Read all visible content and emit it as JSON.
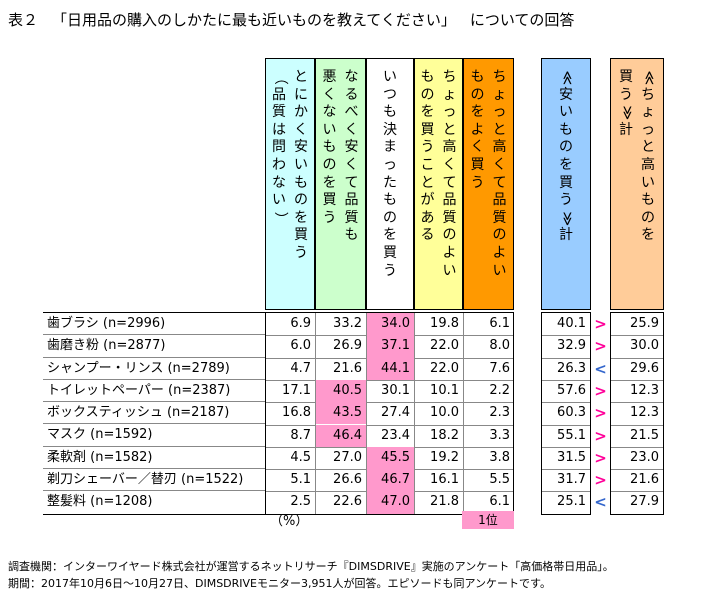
{
  "title": {
    "label": "表２",
    "text": "「日用品の購入のしかたに最も近いものを教えてください」",
    "suffix": "についての回答"
  },
  "chart_data": {
    "type": "table",
    "headers": [
      {
        "lines": [
          "とにかく安いものを買う",
          "（品質は問わない）"
        ],
        "color": "#ccffff"
      },
      {
        "lines": [
          "なるべく安くて品質も",
          "悪くないものを買う"
        ],
        "color": "#ccffcc"
      },
      {
        "lines": [
          "いつも決まったものを買う"
        ],
        "color": "#ffffff"
      },
      {
        "lines": [
          "ちょっと高くて品質のよい",
          "ものを買うことがある"
        ],
        "color": "#ffff99"
      },
      {
        "lines": [
          "ちょっと高くて品質のよい",
          "ものをよく買う"
        ],
        "color": "#ff9900"
      }
    ],
    "total_headers": [
      {
        "lines": [
          "≪安いものを買う≫計"
        ],
        "color": "#99ccff"
      },
      {
        "lines": [
          "≪ちょっと高いものを",
          "買う≫計"
        ],
        "color": "#ffcc99"
      }
    ],
    "rows": [
      {
        "label": "歯ブラシ (n=2996)",
        "values": [
          6.9,
          33.2,
          34.0,
          19.8,
          6.1
        ],
        "top": 2,
        "cheap_total": 40.1,
        "compare": ">",
        "premium_total": 25.9
      },
      {
        "label": "歯磨き粉 (n=2877)",
        "values": [
          6.0,
          26.9,
          37.1,
          22.0,
          8.0
        ],
        "top": 2,
        "cheap_total": 32.9,
        "compare": ">",
        "premium_total": 30.0
      },
      {
        "label": "シャンプー・リンス (n=2789)",
        "values": [
          4.7,
          21.6,
          44.1,
          22.0,
          7.6
        ],
        "top": 2,
        "cheap_total": 26.3,
        "compare": "<",
        "premium_total": 29.6
      },
      {
        "label": "トイレットペーパー (n=2387)",
        "values": [
          17.1,
          40.5,
          30.1,
          10.1,
          2.2
        ],
        "top": 1,
        "cheap_total": 57.6,
        "compare": ">",
        "premium_total": 12.3
      },
      {
        "label": "ボックスティッシュ (n=2187)",
        "values": [
          16.8,
          43.5,
          27.4,
          10.0,
          2.3
        ],
        "top": 1,
        "cheap_total": 60.3,
        "compare": ">",
        "premium_total": 12.3
      },
      {
        "label": "マスク (n=1592)",
        "values": [
          8.7,
          46.4,
          23.4,
          18.2,
          3.3
        ],
        "top": 1,
        "cheap_total": 55.1,
        "compare": ">",
        "premium_total": 21.5
      },
      {
        "label": "柔軟剤 (n=1582)",
        "values": [
          4.5,
          27.0,
          45.5,
          19.2,
          3.8
        ],
        "top": 2,
        "cheap_total": 31.5,
        "compare": ">",
        "premium_total": 23.0
      },
      {
        "label": "剃刀シェーバー／替刃 (n=1522)",
        "values": [
          5.1,
          26.6,
          46.7,
          16.1,
          5.5
        ],
        "top": 2,
        "cheap_total": 31.7,
        "compare": ">",
        "premium_total": 21.6
      },
      {
        "label": "整髪料 (n=1208)",
        "values": [
          2.5,
          22.6,
          47.0,
          21.8,
          6.1
        ],
        "top": 2,
        "cheap_total": 25.1,
        "compare": "<",
        "premium_total": 27.9
      }
    ],
    "compare_colors": {
      ">": "#ff0099",
      "<": "#3366cc"
    },
    "highlight_color": "#ff99cc"
  },
  "unit_label": "（%）",
  "rank_label": "1位",
  "footnotes": [
    "調査機関：インターワイヤード株式会社が運営するネットリサーチ『DIMSDRIVE』実施のアンケート「高価格帯日用品」。",
    "期間：2017年10月6日～10月27日、DIMSDRIVEモニター3,951人が回答。エピソードも同アンケートです。"
  ]
}
